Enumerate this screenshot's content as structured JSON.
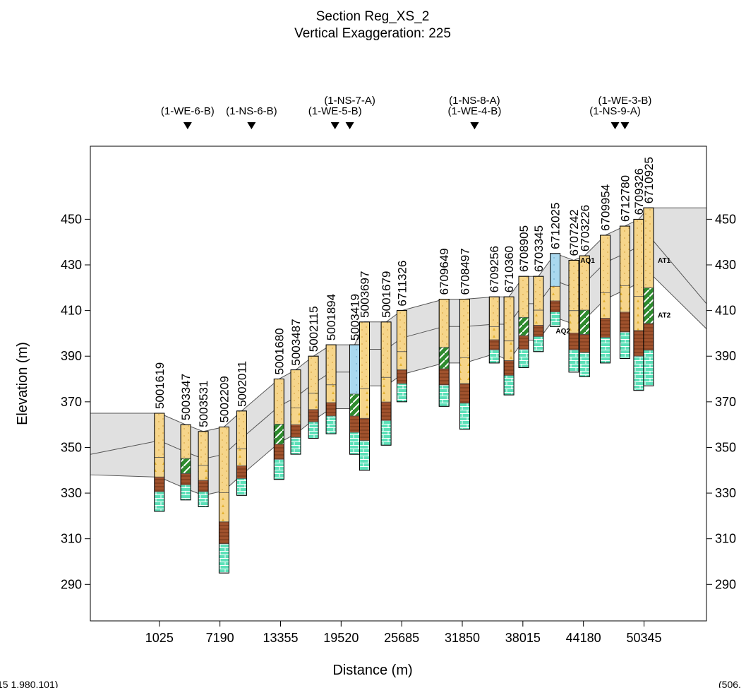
{
  "chart_data": {
    "type": "cross-section",
    "title": "Section Reg_XS_2",
    "subtitle": "Vertical Exaggeration: 225",
    "xlabel": "Distance (m)",
    "ylabel": "Elevation (m)",
    "xlim": [
      -6000,
      56700
    ],
    "ylim": [
      274,
      482
    ],
    "xticks": [
      1025,
      7190,
      13355,
      19520,
      25685,
      31850,
      38015,
      44180,
      50345
    ],
    "yticks": [
      290,
      310,
      330,
      350,
      370,
      390,
      410,
      430,
      450
    ],
    "x_tick_labels": [
      "1025",
      "7190",
      "13355",
      "19520",
      "25685",
      "31850",
      "38015",
      "44180",
      "50345"
    ],
    "y_tick_labels": [
      "290",
      "310",
      "330",
      "350",
      "370",
      "390",
      "410",
      "430",
      "450"
    ],
    "section_markers": [
      {
        "label": "(1-WE-6-B)",
        "x": 3900,
        "row": 0
      },
      {
        "label": "(1-NS-6-B)",
        "x": 10400,
        "row": 0
      },
      {
        "label": "(1-WE-5-B)",
        "x": 18900,
        "row": 0
      },
      {
        "label": "(1-NS-7-A)",
        "x": 20400,
        "row": 1
      },
      {
        "label": "(1-WE-4-B)",
        "x": 33100,
        "row": 0
      },
      {
        "label": "(1-NS-8-A)",
        "x": 33100,
        "row": 1
      },
      {
        "label": "(1-NS-9-A)",
        "x": 47400,
        "row": 0
      },
      {
        "label": "(1-WE-3-B)",
        "x": 48400,
        "row": 1
      }
    ],
    "units": [
      {
        "label": "AT1",
        "x": 52400,
        "y": 431
      },
      {
        "label": "AT2",
        "x": 52400,
        "y": 407
      },
      {
        "label": "AQ1",
        "x": 44600,
        "y": 431
      },
      {
        "label": "AQ2",
        "x": 42100,
        "y": 400
      }
    ],
    "wells": [
      {
        "id": "5001619",
        "x": 1025,
        "top": 365,
        "bottom": 322
      },
      {
        "id": "5003347",
        "x": 3700,
        "top": 360,
        "bottom": 327
      },
      {
        "id": "5003531",
        "x": 5500,
        "top": 357,
        "bottom": 324
      },
      {
        "id": "5002209",
        "x": 7600,
        "top": 359,
        "bottom": 295
      },
      {
        "id": "5002011",
        "x": 9400,
        "top": 366,
        "bottom": 329
      },
      {
        "id": "5001680",
        "x": 13200,
        "top": 380,
        "bottom": 336
      },
      {
        "id": "5003487",
        "x": 14900,
        "top": 384,
        "bottom": 347
      },
      {
        "id": "5002115",
        "x": 16700,
        "top": 390,
        "bottom": 354
      },
      {
        "id": "5001894",
        "x": 18500,
        "top": 395,
        "bottom": 356
      },
      {
        "id": "5003419",
        "x": 20900,
        "top": 395,
        "bottom": 347
      },
      {
        "id": "5003697",
        "x": 21900,
        "top": 405,
        "bottom": 340
      },
      {
        "id": "5001679",
        "x": 24100,
        "top": 405,
        "bottom": 351
      },
      {
        "id": "6711326",
        "x": 25700,
        "top": 410,
        "bottom": 370
      },
      {
        "id": "6709649",
        "x": 30000,
        "top": 415,
        "bottom": 368
      },
      {
        "id": "6708497",
        "x": 32100,
        "top": 415,
        "bottom": 358
      },
      {
        "id": "6709256",
        "x": 35100,
        "top": 416,
        "bottom": 387
      },
      {
        "id": "6710360",
        "x": 36600,
        "top": 416,
        "bottom": 373
      },
      {
        "id": "6708905",
        "x": 38100,
        "top": 425,
        "bottom": 385
      },
      {
        "id": "6703345",
        "x": 39600,
        "top": 425,
        "bottom": 392
      },
      {
        "id": "6712025",
        "x": 41300,
        "top": 435,
        "bottom": 403
      },
      {
        "id": "6707242",
        "x": 43200,
        "top": 432,
        "bottom": 383
      },
      {
        "id": "6703226",
        "x": 44300,
        "top": 434,
        "bottom": 381
      },
      {
        "id": "6709954",
        "x": 46400,
        "top": 443,
        "bottom": 387
      },
      {
        "id": "6712780",
        "x": 48400,
        "top": 447,
        "bottom": 389
      },
      {
        "id": "6709326",
        "x": 49800,
        "top": 450,
        "bottom": 375
      },
      {
        "id": "6710925",
        "x": 50800,
        "top": 455,
        "bottom": 377
      }
    ],
    "corner_left": "15  1,980,101)",
    "corner_right": "(506,"
  }
}
